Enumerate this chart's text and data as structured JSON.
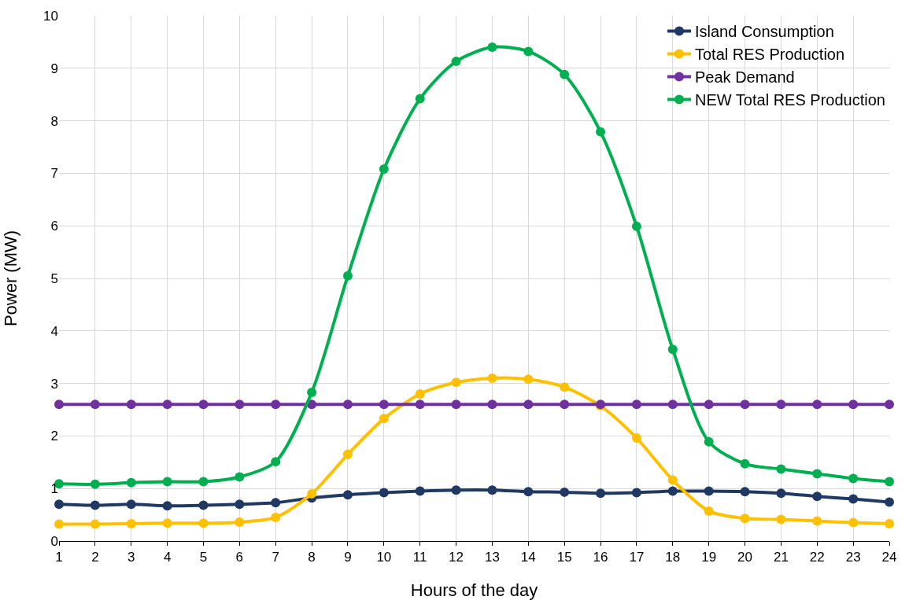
{
  "chart_data": {
    "type": "line",
    "xlabel": "Hours of the day",
    "ylabel": "Power (MW)",
    "x": [
      1,
      2,
      3,
      4,
      5,
      6,
      7,
      8,
      9,
      10,
      11,
      12,
      13,
      14,
      15,
      16,
      17,
      18,
      19,
      20,
      21,
      22,
      23,
      24
    ],
    "xlim": [
      1,
      24
    ],
    "xticks": [
      1,
      2,
      3,
      4,
      5,
      6,
      7,
      8,
      9,
      10,
      11,
      12,
      13,
      14,
      15,
      16,
      17,
      18,
      19,
      20,
      21,
      22,
      23,
      24
    ],
    "ylim": [
      0,
      10
    ],
    "yticks": [
      0,
      1,
      2,
      3,
      4,
      5,
      6,
      7,
      8,
      9,
      10
    ],
    "grid": true,
    "legend": "top right",
    "marker": "circle",
    "line_style": "solid",
    "series": [
      {
        "name": "Island Consumption",
        "color": "#1f3864",
        "values": [
          0.7,
          0.68,
          0.7,
          0.67,
          0.68,
          0.7,
          0.73,
          0.82,
          0.88,
          0.92,
          0.95,
          0.97,
          0.97,
          0.94,
          0.93,
          0.91,
          0.92,
          0.95,
          0.95,
          0.94,
          0.91,
          0.85,
          0.8,
          0.74
        ]
      },
      {
        "name": "Total RES Production",
        "color": "#ffc000",
        "values": [
          0.32,
          0.32,
          0.33,
          0.34,
          0.34,
          0.36,
          0.45,
          0.9,
          1.65,
          2.33,
          2.8,
          3.02,
          3.1,
          3.08,
          2.93,
          2.57,
          1.96,
          1.16,
          0.57,
          0.43,
          0.41,
          0.38,
          0.35,
          0.33
        ]
      },
      {
        "name": "Peak Demand",
        "color": "#7030a0",
        "values": [
          2.6,
          2.6,
          2.6,
          2.6,
          2.6,
          2.6,
          2.6,
          2.6,
          2.6,
          2.6,
          2.6,
          2.6,
          2.6,
          2.6,
          2.6,
          2.6,
          2.6,
          2.6,
          2.6,
          2.6,
          2.6,
          2.6,
          2.6,
          2.6
        ]
      },
      {
        "name": "NEW Total RES Production",
        "color": "#00b050",
        "values": [
          1.09,
          1.08,
          1.11,
          1.13,
          1.13,
          1.22,
          1.51,
          2.83,
          5.05,
          7.08,
          8.42,
          9.13,
          9.4,
          9.32,
          8.88,
          7.79,
          5.99,
          3.65,
          1.89,
          1.47,
          1.37,
          1.28,
          1.19,
          1.13
        ]
      }
    ]
  }
}
